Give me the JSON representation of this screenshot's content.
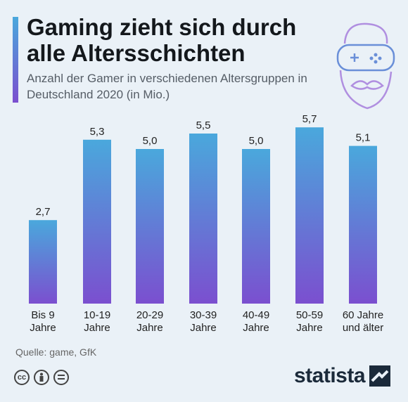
{
  "header": {
    "title": "Gaming zieht sich durch alle Altersschichten",
    "subtitle": "Anzahl der Gamer in verschiedenen Altersgruppen in Deutschland 2020 (in Mio.)"
  },
  "chart_data": {
    "type": "bar",
    "categories": [
      [
        "Bis 9",
        "Jahre"
      ],
      [
        "10-19",
        "Jahre"
      ],
      [
        "20-29",
        "Jahre"
      ],
      [
        "30-39",
        "Jahre"
      ],
      [
        "40-49",
        "Jahre"
      ],
      [
        "50-59",
        "Jahre"
      ],
      [
        "60 Jahre",
        "und älter"
      ]
    ],
    "values": [
      2.7,
      5.3,
      5.0,
      5.5,
      5.0,
      5.7,
      5.1
    ],
    "value_labels": [
      "2,7",
      "5,3",
      "5,0",
      "5,5",
      "5,0",
      "5,7",
      "5,1"
    ],
    "ylim": [
      0,
      6
    ],
    "grid": false,
    "bar_gradient": [
      "#4aa8dc",
      "#7b4fcf"
    ]
  },
  "footer": {
    "source": "Quelle: game, GfK",
    "brand": "statista",
    "license_icons": [
      "cc-icon",
      "by-icon",
      "nd-icon"
    ]
  },
  "colors": {
    "background": "#eaf1f7",
    "accent_top": "#4aa8dc",
    "accent_bottom": "#7b4fcf"
  }
}
